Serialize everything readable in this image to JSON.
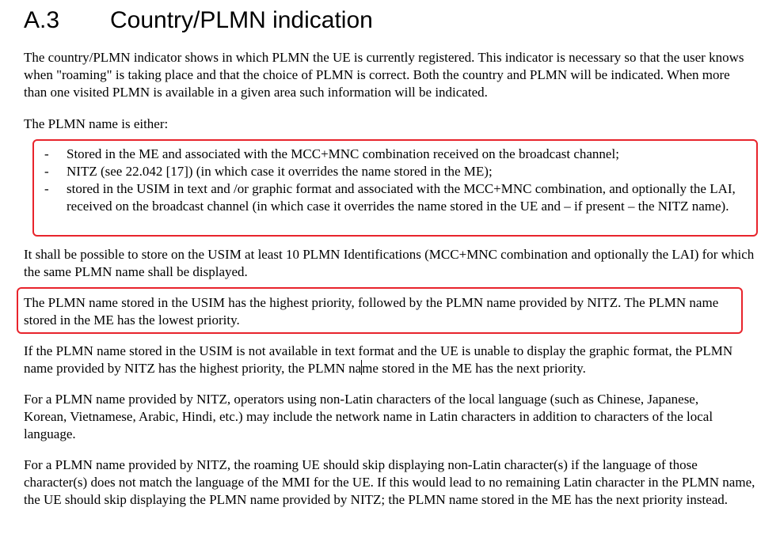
{
  "section": {
    "number": "A.3",
    "title": "Country/PLMN indication"
  },
  "paragraphs": {
    "intro": "The country/PLMN indicator shows in which PLMN the UE is currently registered. This indicator is necessary so that the user knows when \"roaming\" is taking place and that the choice of PLMN is correct. Both the country and PLMN will be indicated. When more than one visited PLMN is available in a given area such information will be indicated.",
    "either": "The PLMN name is either:",
    "usim_storage": "It shall be possible to store on the USIM at least 10 PLMN Identifications (MCC+MNC combination and optionally the LAI) for which the same PLMN name shall be displayed.",
    "priority": "The PLMN name stored in the USIM has the highest priority, followed by the PLMN name provided by NITZ. The PLMN name stored in the ME has the lowest priority.",
    "fallback_part1": "If the PLMN name stored in the USIM is not available in text format and the UE is unable to display the graphic format, the PLMN name provided by NITZ has the highest priority, the PLMN na",
    "fallback_part2": "me stored in the ME has the next priority.",
    "non_latin": "For a PLMN name provided by NITZ, operators using non-Latin characters of the local language (such as Chinese, Japanese, Korean, Vietnamese, Arabic, Hindi, etc.) may include the network name in Latin characters in addition to characters of the local language.",
    "roaming_skip": "For a PLMN name provided by NITZ, the roaming UE should skip displaying non-Latin character(s) if the language of those character(s) does not match the language of the MMI for the UE. If this would lead to no remaining Latin character in the PLMN name, the UE should skip displaying the PLMN name provided by NITZ; the PLMN name stored in the ME has the next priority instead."
  },
  "list": {
    "dash": "-",
    "items": [
      "Stored in the ME and associated with the MCC+MNC combination received on the broadcast channel;",
      "NITZ (see 22.042 [17]) (in which case it overrides the name stored in the ME);",
      "stored in the USIM in text and /or graphic format and associated with the MCC+MNC combination, and optionally the LAI, received on the broadcast channel (in which case it overrides the name stored in the UE and – if present – the NITZ name)."
    ]
  },
  "colors": {
    "highlight_box": "#e8242c",
    "text": "#000000",
    "background": "#ffffff"
  }
}
